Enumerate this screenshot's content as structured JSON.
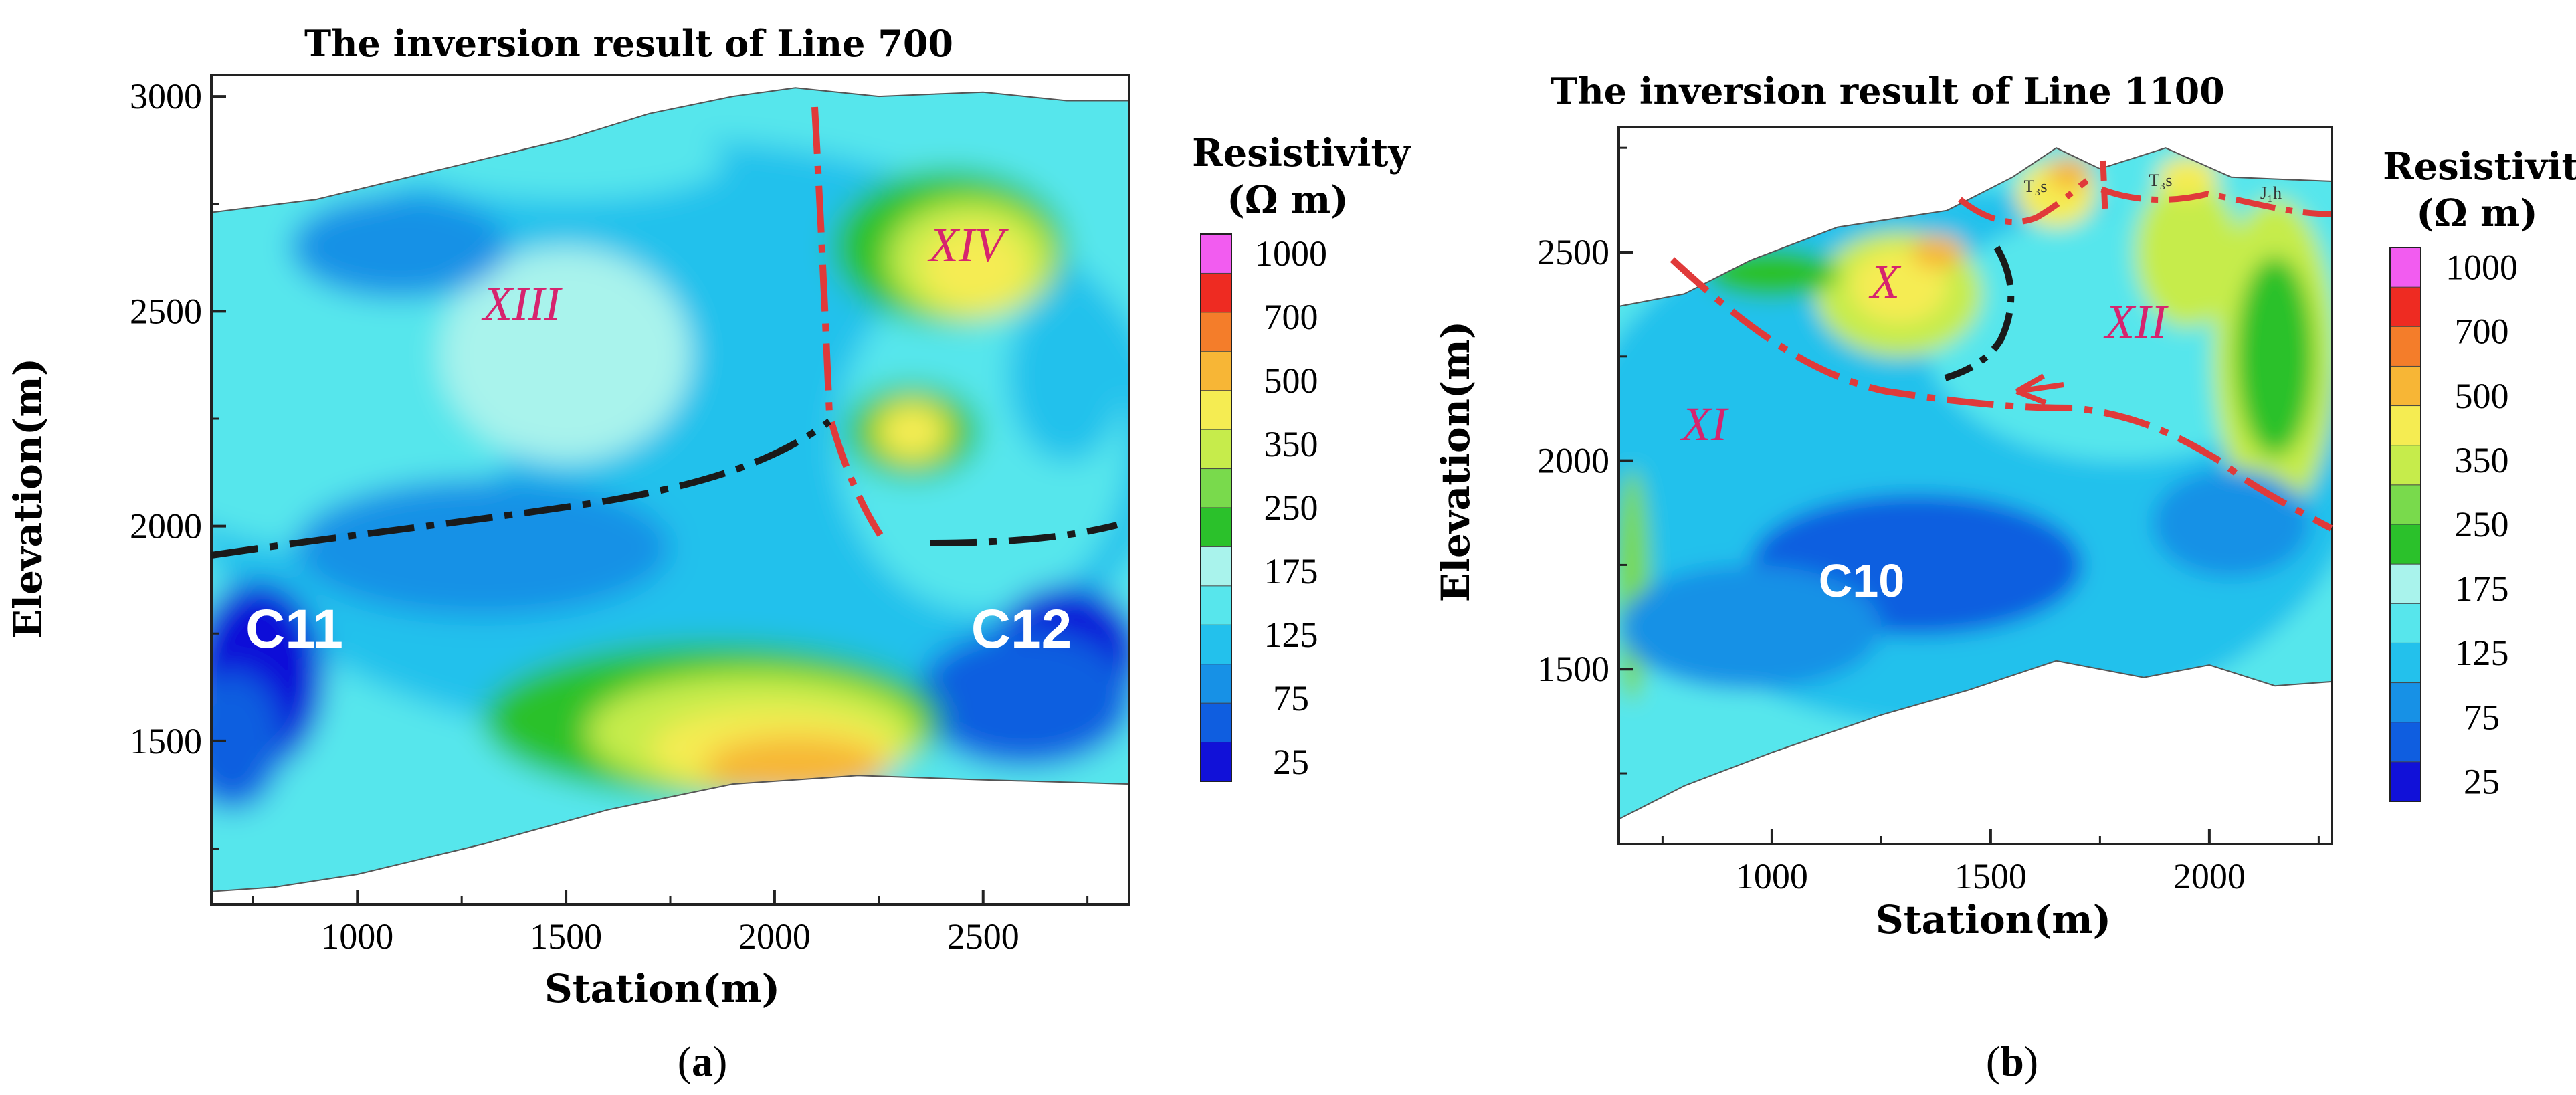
{
  "chart_data": [
    {
      "type": "heatmap",
      "title": "The inversion result of Line 700",
      "xlabel": "Station(m)",
      "ylabel": "Elevation(m)",
      "xlim": [
        650,
        2850
      ],
      "ylim": [
        1120,
        3050
      ],
      "x_ticks": [
        1000,
        1500,
        2000,
        2500
      ],
      "y_ticks": [
        1500,
        2000,
        2500,
        3000
      ],
      "x_tick_labels": [
        "1000",
        "1500",
        "2000",
        "2500"
      ],
      "y_tick_labels": [
        "1500",
        "2000",
        "2500",
        "3000"
      ],
      "colorbar": {
        "title_line1": "Resistivity",
        "title_line2": "(Ω m)",
        "levels": [
          "1000",
          "700",
          "500",
          "350",
          "250",
          "175",
          "125",
          "75",
          "25"
        ]
      },
      "zone_labels": [
        "XIII",
        "XIV"
      ],
      "anomaly_labels": [
        "C11",
        "C12"
      ],
      "panel_label": "a"
    },
    {
      "type": "heatmap",
      "title": "The inversion result of Line 1100",
      "xlabel": "Station(m)",
      "ylabel": "Elevation(m)",
      "xlim": [
        650,
        2280
      ],
      "ylim": [
        1080,
        2800
      ],
      "x_ticks": [
        1000,
        1500,
        2000
      ],
      "y_ticks": [
        1500,
        2000,
        2500
      ],
      "x_tick_labels": [
        "1000",
        "1500",
        "2000"
      ],
      "y_tick_labels": [
        "1500",
        "2000",
        "2500"
      ],
      "colorbar": {
        "title_line1": "Resistivity",
        "title_line2": "(Ω m)",
        "levels": [
          "1000",
          "700",
          "500",
          "350",
          "250",
          "175",
          "125",
          "75",
          "25"
        ]
      },
      "zone_labels": [
        "X",
        "XI",
        "XII"
      ],
      "anomaly_labels": [
        "C10"
      ],
      "formation_labels": [
        "T₃s",
        "T₃s",
        "J₁h"
      ],
      "panel_label": "b"
    }
  ],
  "colors": {
    "palette": [
      "#f25cf0",
      "#ee2b22",
      "#f47d2a",
      "#f7b636",
      "#f5ec52",
      "#c6ec4b",
      "#79da4c",
      "#2bc12b",
      "#a9f3ec",
      "#57e6ec",
      "#23c1ec",
      "#1791e6",
      "#0f5ee0",
      "#1111d8"
    ],
    "fault_red": "#e03a3a",
    "boundary_black": "#1a1a1a",
    "zone_label": "#d6246e"
  }
}
